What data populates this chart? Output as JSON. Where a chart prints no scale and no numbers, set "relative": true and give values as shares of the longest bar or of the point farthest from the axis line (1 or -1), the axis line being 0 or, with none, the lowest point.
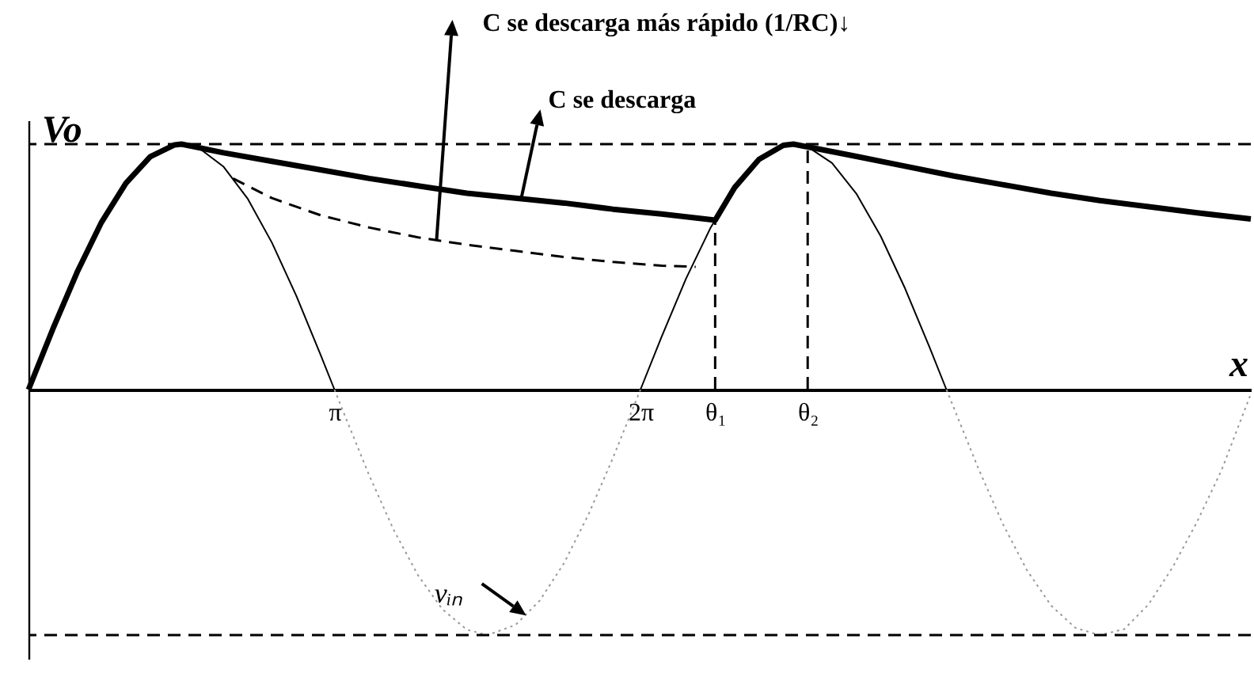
{
  "chart_data": {
    "type": "line",
    "relative": true,
    "xlabel": "x",
    "ylabel": "Vo",
    "xlim": [
      0,
      12.55
    ],
    "xticks": [
      {
        "value": 3.1416,
        "label": "π"
      },
      {
        "value": 6.2832,
        "label": "2π"
      },
      {
        "value": 7.05,
        "label": "θ₁"
      },
      {
        "value": 8.0,
        "label": "θ₂"
      }
    ],
    "grid": false,
    "marker": "none",
    "series": [
      {
        "color": "#000000",
        "line_style": "solid",
        "x": [
          0,
          0.25,
          0.5,
          0.75,
          1,
          1.25,
          1.5,
          1.75,
          2,
          2.25,
          2.5,
          2.75,
          3,
          3.1416
        ],
        "values": [
          0,
          0.247,
          0.479,
          0.682,
          0.841,
          0.949,
          0.997,
          0.984,
          0.909,
          0.778,
          0.598,
          0.382,
          0.141,
          0
        ]
      },
      {
        "color": "#999999",
        "line_style": "dotted",
        "x": [
          3.1416,
          3.25,
          3.5,
          3.75,
          4,
          4.25,
          4.5,
          4.712,
          5,
          5.25,
          5.5,
          5.75,
          6,
          6.2832
        ],
        "values": [
          0,
          -0.108,
          -0.351,
          -0.572,
          -0.757,
          -0.895,
          -0.978,
          -1,
          -0.959,
          -0.859,
          -0.706,
          -0.508,
          -0.279,
          0
        ]
      },
      {
        "color": "#000000",
        "line_style": "solid",
        "x": [
          6.2832,
          6.5,
          6.75,
          7,
          7.25,
          7.5,
          7.75,
          7.854,
          8,
          8.25,
          8.5,
          8.75,
          9,
          9.25,
          9.4248
        ],
        "values": [
          0,
          0.215,
          0.451,
          0.657,
          0.823,
          0.938,
          0.995,
          1,
          0.989,
          0.923,
          0.798,
          0.625,
          0.412,
          0.174,
          0
        ]
      },
      {
        "color": "#999999",
        "line_style": "dotted",
        "x": [
          9.4248,
          9.75,
          10,
          10.25,
          10.5,
          10.75,
          10.996,
          11.25,
          11.5,
          11.75,
          12,
          12.25,
          12.55
        ],
        "values": [
          0,
          -0.319,
          -0.544,
          -0.735,
          -0.88,
          -0.971,
          -1,
          -0.976,
          -0.875,
          -0.722,
          -0.537,
          -0.328,
          -0.017
        ]
      },
      {
        "color": "#000000",
        "line_style": "dashed",
        "x": [
          2.1,
          2.5,
          3,
          3.5,
          4,
          4.5,
          5,
          5.5,
          6,
          6.5,
          6.85
        ],
        "values": [
          0.86,
          0.78,
          0.71,
          0.66,
          0.62,
          0.59,
          0.565,
          0.54,
          0.52,
          0.505,
          0.5
        ]
      },
      {
        "color": "#000000",
        "line_style": "solid",
        "x": [
          0,
          0.25,
          0.5,
          0.75,
          1,
          1.25,
          1.5,
          1.5708,
          2,
          2.5,
          3,
          3.5,
          4,
          4.5,
          5,
          5.5,
          6,
          6.5,
          7.05,
          7.25,
          7.5,
          7.75,
          7.854,
          8.5,
          9,
          9.5,
          10,
          10.5,
          11,
          11.5,
          12,
          12.55
        ],
        "values": [
          0,
          0.247,
          0.479,
          0.682,
          0.841,
          0.949,
          0.997,
          1,
          0.965,
          0.93,
          0.895,
          0.86,
          0.83,
          0.8,
          0.78,
          0.76,
          0.735,
          0.715,
          0.69,
          0.823,
          0.938,
          0.995,
          1,
          0.95,
          0.91,
          0.87,
          0.835,
          0.8,
          0.77,
          0.745,
          0.72,
          0.695
        ]
      },
      {
        "color": "#000000",
        "line_style": "dashed",
        "x": [
          7.05,
          7.05
        ],
        "values": [
          0,
          0.69
        ]
      },
      {
        "color": "#000000",
        "line_style": "dashed",
        "x": [
          8.0,
          8.0
        ],
        "values": [
          0,
          0.99
        ]
      }
    ],
    "ref_lines": [
      {
        "axis": "y",
        "value": 1,
        "color": "#000000",
        "line_style": "dashed"
      },
      {
        "axis": "y",
        "value": -1,
        "color": "#000000",
        "line_style": "dashed"
      }
    ],
    "annotations": [
      {
        "text": "C se descarga más rápido (1/RC)↓",
        "x": 4.19,
        "y": 0.61
      },
      {
        "text": "C se descarga",
        "x": 5.06,
        "y": 0.78
      },
      {
        "text": "vᵢₙ",
        "x": 5.11,
        "y": -0.92
      }
    ]
  }
}
